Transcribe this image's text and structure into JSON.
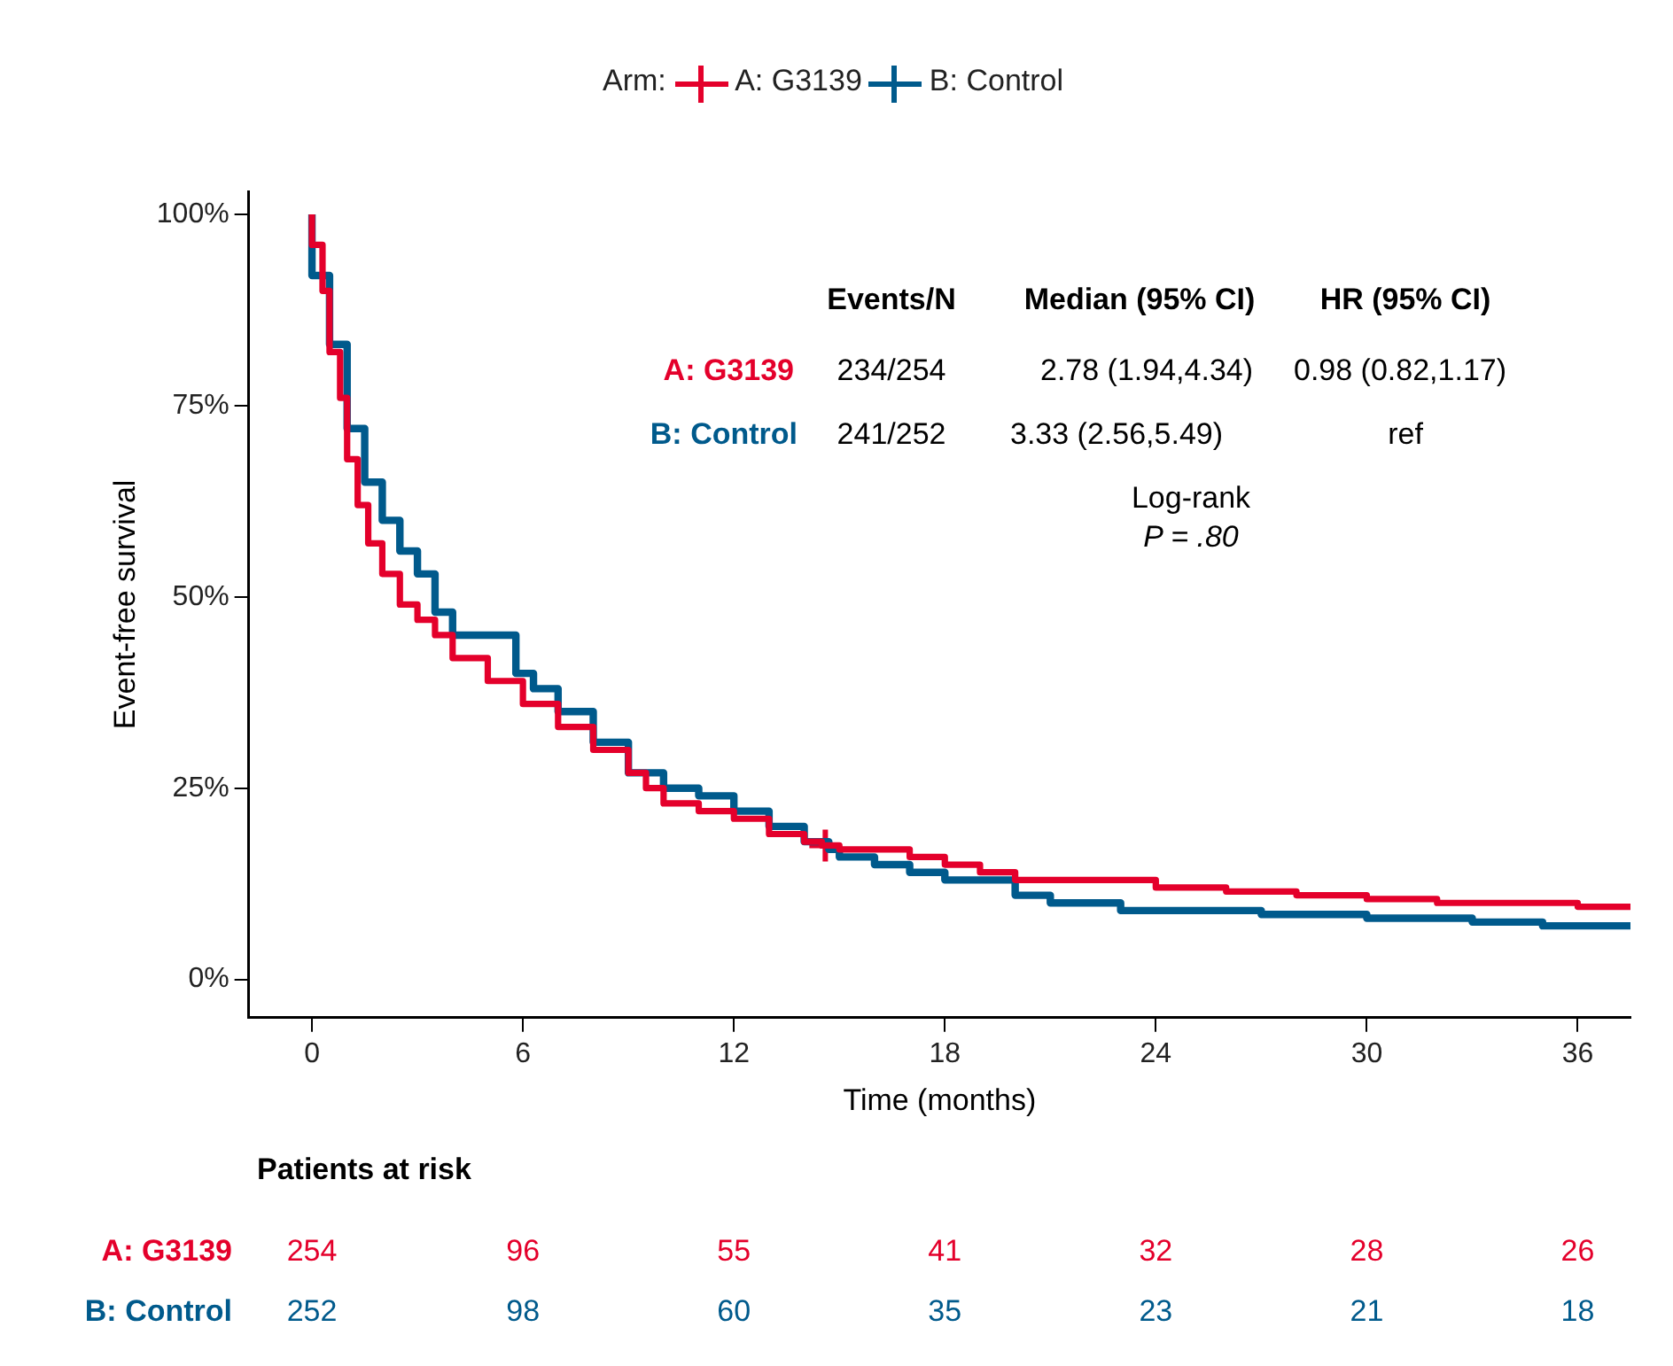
{
  "chart_data": {
    "type": "step",
    "xlabel": "Time (months)",
    "ylabel": "Event-free survival",
    "legend_title": "Arm:",
    "legend": "top",
    "grid": false,
    "xlim": [
      -1.8,
      37.5
    ],
    "xticks": [
      0,
      6,
      12,
      18,
      24,
      30,
      36
    ],
    "ylim": [
      -5,
      103
    ],
    "yticks": [
      {
        "value": 0,
        "label": "0%"
      },
      {
        "value": 25,
        "label": "25%"
      },
      {
        "value": 50,
        "label": "50%"
      },
      {
        "value": 75,
        "label": "75%"
      },
      {
        "value": 100,
        "label": "100%"
      }
    ],
    "series": [
      {
        "name": "A: G3139",
        "color": "#e4002b",
        "x": [
          0,
          0.3,
          0.5,
          0.8,
          1,
          1.3,
          1.6,
          2,
          2.5,
          3,
          3.5,
          4,
          5,
          6,
          7,
          8,
          9,
          9.5,
          10,
          11,
          12,
          13,
          14,
          14.5,
          15,
          17,
          18,
          19,
          20,
          22,
          24,
          26,
          28,
          30,
          32,
          34,
          36,
          37.5
        ],
        "values": [
          100,
          96,
          90,
          82,
          76,
          68,
          62,
          57,
          53,
          49,
          47,
          45,
          42,
          39,
          36,
          33,
          30,
          27,
          25,
          23,
          22,
          21,
          19,
          18,
          17.5,
          17,
          16,
          15,
          14,
          13,
          13,
          12,
          11.5,
          11,
          10.5,
          10,
          10,
          9.5
        ]
      },
      {
        "name": "B: Control",
        "color": "#005a8c",
        "x": [
          0,
          0.5,
          1,
          1.5,
          2,
          2.5,
          3,
          3.5,
          4,
          5,
          5.8,
          6.3,
          7,
          8,
          9,
          10,
          11,
          12,
          13,
          14,
          14.7,
          15,
          16,
          17,
          18,
          20,
          21,
          23,
          24,
          27,
          30,
          33,
          35,
          37.5
        ],
        "values": [
          100,
          92,
          83,
          72,
          65,
          60,
          56,
          53,
          48,
          45,
          45,
          40,
          38,
          35,
          31,
          27,
          25,
          24,
          22,
          20,
          18,
          17,
          16,
          15,
          14,
          13,
          11,
          10,
          9,
          9,
          8.5,
          8,
          7.5,
          7
        ]
      },
      {
        "type": "scatter",
        "color": "#e4002b",
        "x": [
          14.6
        ],
        "values": [
          17.5
        ],
        "marker": "cross"
      }
    ],
    "annotations": [
      "Events/N",
      "Median (95% CI)",
      "HR (95% CI)",
      "A: G3139",
      "234/254",
      "2.78 (1.94,4.34)",
      "0.98 (0.82,1.17)",
      "B: Control",
      "241/252",
      "3.33 (2.56,5.49)",
      "ref",
      "Log-rank",
      "P = .80",
      "Patients at risk",
      "A: G3139",
      "254",
      "96",
      "55",
      "41",
      "32",
      "28",
      "26",
      "B: Control",
      "252",
      "98",
      "60",
      "35",
      "23",
      "21",
      "18"
    ]
  }
}
